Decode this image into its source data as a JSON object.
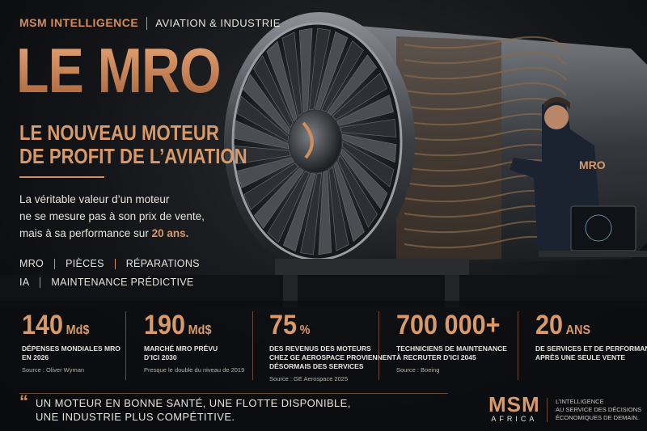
{
  "header": {
    "brand": "MSM INTELLIGENCE",
    "section": "AVIATION & INDUSTRIE"
  },
  "title": "LE MRO",
  "subtitle": [
    "LE NOUVEAU MOTEUR",
    "DE PROFIT DE L’AVIATION"
  ],
  "intro": {
    "lines": [
      "La véritable valeur d’un moteur",
      "ne se mesure pas à son prix de vente,"
    ],
    "last_prefix": "mais à sa performance sur",
    "highlight": "20 ans."
  },
  "tags": [
    [
      "MRO",
      "PIÈCES",
      "RÉPARATIONS"
    ],
    [
      "IA",
      "MAINTENANCE PRÉDICTIVE"
    ]
  ],
  "jacket_label": "MRO",
  "stats": [
    {
      "value": "140",
      "unit": "Md$",
      "lines": [
        "DÉPENSES MONDIALES MRO",
        "EN 2026"
      ],
      "note": "Source : Oliver Wyman"
    },
    {
      "value": "190",
      "unit": "Md$",
      "lines": [
        "MARCHÉ MRO PRÉVU",
        "D’ICI 2030"
      ],
      "note": "Presque le double du niveau de 2019"
    },
    {
      "value": "75",
      "unit": "%",
      "lines": [
        "DES REVENUS DES MOTEURS",
        "CHEZ GE AEROSPACE PROVIENNENT",
        "DÉSORMAIS DES SERVICES"
      ],
      "note": "Source : GE Aerospace 2025"
    },
    {
      "value": "700 000+",
      "lines": [
        "TECHNICIENS DE MAINTENANCE",
        "À RECRUTER D’ICI 2045"
      ],
      "note": "Source : Boeing"
    },
    {
      "value": "20",
      "unit": "ANS",
      "lines": [
        "DE SERVICES ET DE PERFORMANCE",
        "APRÈS UNE SEULE VENTE"
      ]
    }
  ],
  "footer": {
    "quote_mark": "“",
    "quote": [
      "UN MOTEUR EN BONNE SANTÉ, UNE FLOTTE DISPONIBLE,",
      "UNE INDUSTRIE PLUS COMPÉTITIVE."
    ],
    "logo": "MSM",
    "logo_sub": "AFRICA",
    "tagline": [
      "L’INTELLIGENCE",
      "AU SERVICE DES DÉCISIONS",
      "ÉCONOMIQUES DE DEMAIN."
    ]
  }
}
